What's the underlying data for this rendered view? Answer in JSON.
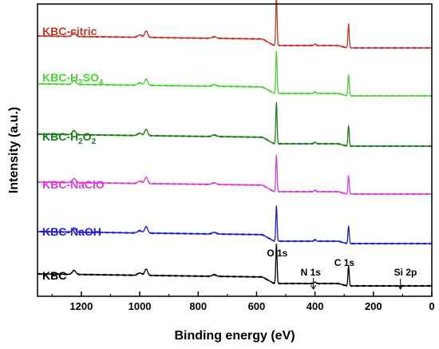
{
  "chart_data": {
    "type": "line",
    "xlabel": "Binding energy (eV)",
    "ylabel": "Intensity (a.u.)",
    "xlim": [
      1350,
      0
    ],
    "x_reversed": true,
    "xticks": [
      1200,
      1000,
      800,
      600,
      400,
      200,
      0
    ],
    "yticks_shown": false,
    "legend": "inline-left",
    "series": [
      {
        "name": "KBC-citric",
        "label_parts": [
          "KBC-citric"
        ],
        "color": "#c0392b",
        "offset": 5.0
      },
      {
        "name": "KBC-H2SO4",
        "label_parts": [
          "KBC-H",
          "2",
          "SO",
          "4"
        ],
        "color": "#4cd137",
        "offset": 4.0
      },
      {
        "name": "KBC-H2O2",
        "label_parts": [
          "KBC-H",
          "2",
          "O",
          "2"
        ],
        "color": "#1e7d1e",
        "offset": 3.0
      },
      {
        "name": "KBC-NaClO",
        "label_parts": [
          "KBC-NaClO"
        ],
        "color": "#d63fd6",
        "offset": 2.0
      },
      {
        "name": "KBC-NaOH",
        "label_parts": [
          "KBC-NaOH"
        ],
        "color": "#1f1fd1",
        "offset": 1.0
      },
      {
        "name": "KBC",
        "label_parts": [
          "KBC"
        ],
        "color": "#000000",
        "offset": 0.0
      }
    ],
    "peak_annotations": [
      {
        "label": "O 1s",
        "x": 532
      },
      {
        "label": "N 1s",
        "x": 400
      },
      {
        "label": "C 1s",
        "x": 285
      },
      {
        "label": "Si 2p",
        "x": 102
      }
    ]
  }
}
